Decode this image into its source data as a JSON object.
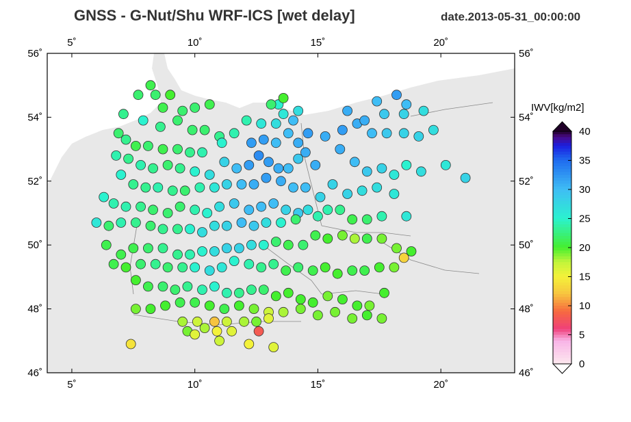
{
  "header": {
    "title": "GNSS  -  G-Nut/Shu WRF-ICS [wet delay]",
    "date": "date.2013-05-31_00:00:00"
  },
  "colorbar": {
    "label": "IWV[kg/m2]",
    "ticks": [
      "0",
      "5",
      "10",
      "15",
      "20",
      "25",
      "30",
      "35",
      "40"
    ],
    "colors": [
      "#fde8ee",
      "#f8b3e6",
      "#ef3f7a",
      "#f7693f",
      "#f7c43f",
      "#f4f23a",
      "#c3f53a",
      "#45ef2f",
      "#2bf2cf",
      "#3fbdf5",
      "#1f6cef",
      "#1a1ee0",
      "#4a0a88",
      "#200028"
    ]
  },
  "chart_data": {
    "type": "scatter",
    "title": "GNSS  -  G-Nut/Shu WRF-ICS [wet delay]",
    "subtitle": "date.2013-05-31_00:00:00",
    "xlim": [
      4,
      23
    ],
    "ylim": [
      46,
      56
    ],
    "x_ticks": [
      "5˚",
      "10˚",
      "15˚",
      "20˚"
    ],
    "y_ticks": [
      "46˚",
      "48˚",
      "50˚",
      "52˚",
      "54˚",
      "56˚"
    ],
    "x_tick_values": [
      5,
      10,
      15,
      20
    ],
    "y_tick_values": [
      46,
      48,
      50,
      52,
      54,
      56
    ],
    "value_label": "IWV[kg/m2]",
    "value_range": [
      0,
      40
    ],
    "points": [
      [
        8.2,
        55.0,
        21
      ],
      [
        7.7,
        54.7,
        22
      ],
      [
        8.4,
        54.7,
        22
      ],
      [
        9.0,
        54.7,
        20
      ],
      [
        8.7,
        54.3,
        21
      ],
      [
        9.5,
        54.2,
        22
      ],
      [
        10.0,
        54.3,
        22
      ],
      [
        10.6,
        54.4,
        21
      ],
      [
        7.1,
        54.1,
        23
      ],
      [
        7.9,
        53.9,
        25
      ],
      [
        8.6,
        53.7,
        23
      ],
      [
        9.3,
        53.9,
        22
      ],
      [
        9.9,
        53.6,
        22
      ],
      [
        10.4,
        53.6,
        22
      ],
      [
        11.0,
        53.4,
        23
      ],
      [
        11.6,
        53.5,
        24
      ],
      [
        6.9,
        53.5,
        22
      ],
      [
        7.2,
        53.3,
        23
      ],
      [
        7.6,
        53.1,
        21
      ],
      [
        8.1,
        53.1,
        22
      ],
      [
        8.7,
        53.0,
        21
      ],
      [
        9.3,
        53.0,
        22
      ],
      [
        9.8,
        52.9,
        23
      ],
      [
        10.3,
        52.9,
        24
      ],
      [
        11.1,
        53.2,
        25
      ],
      [
        6.8,
        52.8,
        24
      ],
      [
        7.3,
        52.7,
        23
      ],
      [
        7.8,
        52.5,
        24
      ],
      [
        8.3,
        52.4,
        23
      ],
      [
        8.9,
        52.5,
        22
      ],
      [
        9.4,
        52.4,
        23
      ],
      [
        10.0,
        52.3,
        25
      ],
      [
        10.6,
        52.2,
        27
      ],
      [
        11.2,
        52.6,
        28
      ],
      [
        11.7,
        52.4,
        30
      ],
      [
        12.2,
        52.5,
        32
      ],
      [
        12.6,
        52.8,
        33
      ],
      [
        13.0,
        52.6,
        32
      ],
      [
        13.4,
        52.4,
        31
      ],
      [
        13.8,
        52.4,
        30
      ],
      [
        14.2,
        52.7,
        29
      ],
      [
        14.5,
        52.9,
        31
      ],
      [
        14.9,
        52.5,
        31
      ],
      [
        12.3,
        53.2,
        32
      ],
      [
        12.8,
        53.3,
        32
      ],
      [
        13.3,
        53.2,
        30
      ],
      [
        13.8,
        53.5,
        30
      ],
      [
        14.2,
        53.2,
        31
      ],
      [
        14.6,
        53.5,
        32
      ],
      [
        15.3,
        53.4,
        31
      ],
      [
        15.9,
        53.0,
        31
      ],
      [
        16.5,
        52.6,
        30
      ],
      [
        17.0,
        52.3,
        29
      ],
      [
        17.6,
        52.4,
        28
      ],
      [
        18.1,
        52.2,
        26
      ],
      [
        18.6,
        52.5,
        25
      ],
      [
        19.2,
        52.3,
        27
      ],
      [
        20.2,
        52.5,
        26
      ],
      [
        21.0,
        52.1,
        28
      ],
      [
        16.0,
        53.6,
        32
      ],
      [
        16.6,
        53.8,
        31
      ],
      [
        17.2,
        53.5,
        30
      ],
      [
        17.8,
        53.5,
        29
      ],
      [
        18.5,
        53.5,
        28
      ],
      [
        19.1,
        53.4,
        28
      ],
      [
        19.7,
        53.6,
        27
      ],
      [
        16.9,
        53.9,
        31
      ],
      [
        17.7,
        54.1,
        29
      ],
      [
        18.5,
        54.1,
        28
      ],
      [
        19.3,
        54.2,
        27
      ],
      [
        16.2,
        54.2,
        31
      ],
      [
        17.4,
        54.5,
        30
      ],
      [
        18.2,
        54.7,
        32
      ],
      [
        18.6,
        54.4,
        30
      ],
      [
        12.1,
        53.9,
        24
      ],
      [
        12.7,
        53.8,
        26
      ],
      [
        13.3,
        53.8,
        27
      ],
      [
        13.6,
        54.1,
        26
      ],
      [
        13.4,
        54.4,
        25
      ],
      [
        14.0,
        53.9,
        30
      ],
      [
        13.1,
        54.4,
        22
      ],
      [
        13.6,
        54.6,
        20
      ],
      [
        14.2,
        54.2,
        27
      ],
      [
        7.0,
        52.2,
        25
      ],
      [
        7.5,
        51.9,
        23
      ],
      [
        8.0,
        51.8,
        23
      ],
      [
        8.5,
        51.8,
        24
      ],
      [
        9.1,
        51.7,
        23
      ],
      [
        9.6,
        51.7,
        22
      ],
      [
        10.2,
        51.8,
        24
      ],
      [
        10.8,
        51.8,
        26
      ],
      [
        11.3,
        51.9,
        28
      ],
      [
        11.9,
        51.9,
        30
      ],
      [
        12.4,
        51.9,
        31
      ],
      [
        12.9,
        52.1,
        32
      ],
      [
        13.5,
        52.0,
        31
      ],
      [
        14.0,
        51.8,
        30
      ],
      [
        14.5,
        51.8,
        30
      ],
      [
        15.1,
        51.5,
        28
      ],
      [
        15.6,
        51.9,
        28
      ],
      [
        16.2,
        51.6,
        28
      ],
      [
        16.8,
        51.7,
        27
      ],
      [
        17.4,
        51.8,
        27
      ],
      [
        18.1,
        51.6,
        26
      ],
      [
        6.3,
        51.5,
        25
      ],
      [
        6.7,
        51.3,
        24
      ],
      [
        7.2,
        51.2,
        24
      ],
      [
        7.8,
        51.2,
        23
      ],
      [
        8.3,
        51.1,
        22
      ],
      [
        8.9,
        51.0,
        22
      ],
      [
        9.4,
        51.2,
        22
      ],
      [
        10.0,
        51.1,
        24
      ],
      [
        10.5,
        51.0,
        25
      ],
      [
        11.0,
        51.2,
        27
      ],
      [
        11.6,
        51.3,
        29
      ],
      [
        12.2,
        51.1,
        30
      ],
      [
        12.7,
        51.2,
        30
      ],
      [
        13.2,
        51.3,
        30
      ],
      [
        13.7,
        51.1,
        28
      ],
      [
        14.2,
        51.0,
        29
      ],
      [
        14.6,
        51.1,
        27
      ],
      [
        15.0,
        50.9,
        24
      ],
      [
        15.4,
        51.1,
        24
      ],
      [
        15.9,
        51.1,
        23
      ],
      [
        16.4,
        50.8,
        21
      ],
      [
        17.0,
        50.8,
        22
      ],
      [
        17.6,
        50.9,
        24
      ],
      [
        18.6,
        50.9,
        26
      ],
      [
        6.0,
        50.7,
        26
      ],
      [
        6.5,
        50.6,
        22
      ],
      [
        7.0,
        50.7,
        24
      ],
      [
        7.6,
        50.7,
        23
      ],
      [
        8.2,
        50.6,
        22
      ],
      [
        8.7,
        50.5,
        23
      ],
      [
        9.3,
        50.5,
        23
      ],
      [
        9.8,
        50.5,
        25
      ],
      [
        10.3,
        50.4,
        27
      ],
      [
        10.8,
        50.6,
        27
      ],
      [
        11.3,
        50.6,
        28
      ],
      [
        11.9,
        50.7,
        30
      ],
      [
        12.4,
        50.6,
        29
      ],
      [
        12.9,
        50.7,
        27
      ],
      [
        13.5,
        50.7,
        25
      ],
      [
        14.1,
        50.8,
        22
      ],
      [
        6.4,
        50.0,
        21
      ],
      [
        7.0,
        49.7,
        21
      ],
      [
        7.5,
        49.9,
        21
      ],
      [
        8.1,
        49.9,
        22
      ],
      [
        8.7,
        49.9,
        23
      ],
      [
        9.3,
        49.7,
        23
      ],
      [
        9.8,
        49.7,
        24
      ],
      [
        10.3,
        49.8,
        25
      ],
      [
        10.8,
        49.8,
        27
      ],
      [
        11.3,
        49.9,
        28
      ],
      [
        11.8,
        49.9,
        28
      ],
      [
        12.3,
        50.0,
        27
      ],
      [
        12.8,
        50.0,
        25
      ],
      [
        13.3,
        50.1,
        22
      ],
      [
        13.8,
        50.0,
        21
      ],
      [
        14.4,
        50.0,
        22
      ],
      [
        14.9,
        50.3,
        21
      ],
      [
        15.4,
        50.2,
        20
      ],
      [
        16.0,
        50.3,
        19
      ],
      [
        16.5,
        50.2,
        18
      ],
      [
        17.0,
        50.2,
        21
      ],
      [
        17.6,
        50.2,
        19
      ],
      [
        18.2,
        49.9,
        19
      ],
      [
        18.8,
        49.8,
        20
      ],
      [
        6.7,
        49.4,
        21
      ],
      [
        7.2,
        49.3,
        20
      ],
      [
        7.8,
        49.4,
        22
      ],
      [
        8.4,
        49.4,
        23
      ],
      [
        8.9,
        49.3,
        22
      ],
      [
        9.5,
        49.3,
        23
      ],
      [
        10.0,
        49.3,
        25
      ],
      [
        10.6,
        49.2,
        27
      ],
      [
        11.1,
        49.3,
        26
      ],
      [
        11.6,
        49.5,
        25
      ],
      [
        12.2,
        49.4,
        24
      ],
      [
        12.7,
        49.3,
        23
      ],
      [
        13.2,
        49.4,
        23
      ],
      [
        13.7,
        49.2,
        21
      ],
      [
        14.2,
        49.3,
        22
      ],
      [
        14.8,
        49.2,
        21
      ],
      [
        15.3,
        49.3,
        20
      ],
      [
        15.8,
        49.1,
        20
      ],
      [
        16.4,
        49.2,
        21
      ],
      [
        16.9,
        49.2,
        21
      ],
      [
        17.5,
        49.3,
        20
      ],
      [
        18.1,
        49.3,
        19
      ],
      [
        18.5,
        49.6,
        13
      ],
      [
        7.6,
        48.9,
        20
      ],
      [
        8.1,
        48.7,
        21
      ],
      [
        8.7,
        48.7,
        22
      ],
      [
        9.2,
        48.6,
        22
      ],
      [
        9.7,
        48.7,
        23
      ],
      [
        10.3,
        48.6,
        24
      ],
      [
        10.8,
        48.7,
        25
      ],
      [
        11.3,
        48.5,
        24
      ],
      [
        11.8,
        48.5,
        23
      ],
      [
        12.3,
        48.6,
        23
      ],
      [
        12.8,
        48.6,
        22
      ],
      [
        13.3,
        48.4,
        20
      ],
      [
        13.8,
        48.5,
        20
      ],
      [
        14.3,
        48.3,
        20
      ],
      [
        14.8,
        48.2,
        20
      ],
      [
        15.4,
        48.4,
        19
      ],
      [
        16.0,
        48.3,
        20
      ],
      [
        16.6,
        48.1,
        20
      ],
      [
        17.1,
        48.1,
        19
      ],
      [
        17.7,
        48.5,
        20
      ],
      [
        7.6,
        48.0,
        19
      ],
      [
        8.2,
        48.0,
        20
      ],
      [
        8.8,
        48.1,
        20
      ],
      [
        9.4,
        48.2,
        21
      ],
      [
        10.0,
        48.2,
        21
      ],
      [
        10.6,
        48.1,
        20
      ],
      [
        11.2,
        48.0,
        21
      ],
      [
        11.8,
        48.1,
        20
      ],
      [
        12.4,
        48.0,
        19
      ],
      [
        13.0,
        47.9,
        17
      ],
      [
        13.6,
        47.9,
        18
      ],
      [
        14.3,
        48.0,
        19
      ],
      [
        15.0,
        47.8,
        19
      ],
      [
        15.7,
        47.9,
        19
      ],
      [
        16.4,
        47.7,
        19
      ],
      [
        17.0,
        47.8,
        20
      ],
      [
        17.6,
        47.7,
        19
      ],
      [
        9.5,
        47.6,
        18
      ],
      [
        10.1,
        47.6,
        17
      ],
      [
        10.8,
        47.6,
        12
      ],
      [
        11.3,
        47.6,
        17
      ],
      [
        12.0,
        47.6,
        18
      ],
      [
        12.5,
        47.6,
        19
      ],
      [
        13.0,
        47.7,
        16
      ],
      [
        9.7,
        47.3,
        19
      ],
      [
        10.4,
        47.4,
        18
      ],
      [
        10.9,
        47.3,
        15
      ],
      [
        11.5,
        47.3,
        16
      ],
      [
        12.6,
        47.3,
        8
      ],
      [
        12.2,
        46.9,
        15
      ],
      [
        13.2,
        46.8,
        16
      ],
      [
        10.0,
        47.2,
        16
      ],
      [
        7.4,
        46.9,
        14
      ],
      [
        11.0,
        47.0,
        17
      ]
    ]
  }
}
